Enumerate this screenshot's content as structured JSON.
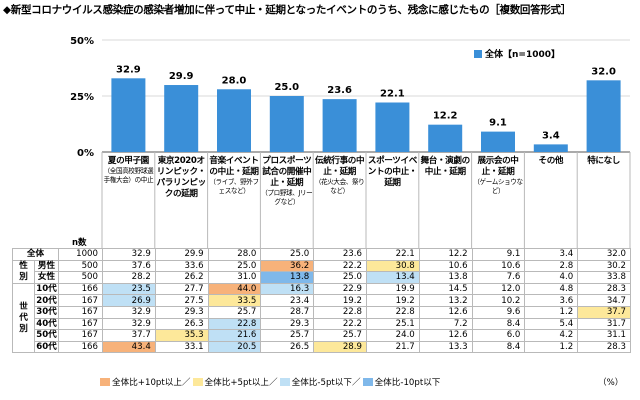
{
  "title": "◆新型コロナウイルス感染症の感染者増加に伴って中止・延期となったイベントのうち、残念に感じたもの［複数回答形式］",
  "legend_label": "全体【n=1000】",
  "n_header": "n数",
  "percent_note": "（%）",
  "colors": {
    "bar": "#3a8fd8",
    "plus10": "#f7b27a",
    "plus5": "#fde89a",
    "minus5": "#bfe0f5",
    "minus10": "#7fb8ea"
  },
  "threshold_legend": [
    {
      "key": "plus10",
      "label": "全体比+10pt以上"
    },
    {
      "key": "plus5",
      "label": "全体比+5pt以上"
    },
    {
      "key": "minus5",
      "label": "全体比-5pt以下"
    },
    {
      "key": "minus10",
      "label": "全体比-10pt以下"
    }
  ],
  "categories": [
    {
      "label": "夏の甲子園",
      "sub": "（全国高校野球選手権大会）の中止"
    },
    {
      "label": "東京2020オリンピック・パラリンピックの延期",
      "sub": ""
    },
    {
      "label": "音楽イベントの中止・延期",
      "sub": "（ライブ、野外フェスなど）"
    },
    {
      "label": "プロスポーツ試合の開催中止・延期",
      "sub": "（プロ野球、Jリーグなど）"
    },
    {
      "label": "伝統行事の中止・延期",
      "sub": "（花火大会、祭りなど）"
    },
    {
      "label": "スポーツイベントの中止・延期",
      "sub": ""
    },
    {
      "label": "舞台・演劇の中止・延期",
      "sub": ""
    },
    {
      "label": "展示会の中止・延期",
      "sub": "（ゲームショウなど）"
    },
    {
      "label": "その他",
      "sub": ""
    },
    {
      "label": "特になし",
      "sub": ""
    }
  ],
  "chart_data": {
    "type": "bar",
    "categories": [
      "夏の甲子園（全国高校野球選手権大会）の中止",
      "東京2020オリンピック・パラリンピックの延期",
      "音楽イベントの中止・延期（ライブ、野外フェスなど）",
      "プロスポーツ試合の開催中止・延期（プロ野球、Jリーグなど）",
      "伝統行事の中止・延期（花火大会、祭りなど）",
      "スポーツイベントの中止・延期",
      "舞台・演劇の中止・延期",
      "展示会の中止・延期（ゲームショウなど）",
      "その他",
      "特になし"
    ],
    "series": [
      {
        "name": "全体【n=1000】",
        "values": [
          32.9,
          29.9,
          28.0,
          25.0,
          23.6,
          22.1,
          12.2,
          9.1,
          3.4,
          32.0
        ]
      }
    ],
    "yticks": [
      "0%",
      "25%",
      "50%"
    ],
    "ylim": [
      0,
      50
    ]
  },
  "table": {
    "groups": [
      {
        "label": "",
        "rows": [
          0
        ]
      },
      {
        "label": "性別",
        "rows": [
          1,
          2
        ]
      },
      {
        "label": "世代別",
        "rows": [
          3,
          4,
          5,
          6,
          7,
          8
        ]
      }
    ],
    "rows": [
      {
        "label": "全体",
        "n": "1000",
        "values": [
          "32.9",
          "29.9",
          "28.0",
          "25.0",
          "23.6",
          "22.1",
          "12.2",
          "9.1",
          "3.4",
          "32.0"
        ],
        "hl": [
          "",
          "",
          "",
          "",
          "",
          "",
          "",
          "",
          "",
          ""
        ]
      },
      {
        "label": "男性",
        "n": "500",
        "values": [
          "37.6",
          "33.6",
          "25.0",
          "36.2",
          "22.2",
          "30.8",
          "10.6",
          "10.6",
          "2.8",
          "30.2"
        ],
        "hl": [
          "",
          "",
          "",
          "plus10",
          "",
          "plus5",
          "",
          "",
          "",
          ""
        ]
      },
      {
        "label": "女性",
        "n": "500",
        "values": [
          "28.2",
          "26.2",
          "31.0",
          "13.8",
          "25.0",
          "13.4",
          "13.8",
          "7.6",
          "4.0",
          "33.8"
        ],
        "hl": [
          "",
          "",
          "",
          "minus10",
          "",
          "minus5",
          "",
          "",
          "",
          ""
        ]
      },
      {
        "label": "10代",
        "n": "166",
        "values": [
          "23.5",
          "27.7",
          "44.0",
          "16.3",
          "22.9",
          "19.9",
          "14.5",
          "12.0",
          "4.8",
          "28.3"
        ],
        "hl": [
          "minus5",
          "",
          "plus10",
          "minus5",
          "",
          "",
          "",
          "",
          "",
          ""
        ]
      },
      {
        "label": "20代",
        "n": "167",
        "values": [
          "26.9",
          "27.5",
          "33.5",
          "23.4",
          "19.2",
          "19.2",
          "13.2",
          "10.2",
          "3.6",
          "34.7"
        ],
        "hl": [
          "minus5",
          "",
          "plus5",
          "",
          "",
          "",
          "",
          "",
          "",
          ""
        ]
      },
      {
        "label": "30代",
        "n": "167",
        "values": [
          "32.9",
          "29.3",
          "25.7",
          "28.7",
          "22.8",
          "22.8",
          "12.6",
          "9.6",
          "1.2",
          "37.7"
        ],
        "hl": [
          "",
          "",
          "",
          "",
          "",
          "",
          "",
          "",
          "",
          "plus5"
        ]
      },
      {
        "label": "40代",
        "n": "167",
        "values": [
          "32.9",
          "26.3",
          "22.8",
          "29.3",
          "22.2",
          "25.1",
          "7.2",
          "8.4",
          "5.4",
          "31.7"
        ],
        "hl": [
          "",
          "",
          "minus5",
          "",
          "",
          "",
          "",
          "",
          "",
          ""
        ]
      },
      {
        "label": "50代",
        "n": "167",
        "values": [
          "37.7",
          "35.3",
          "21.6",
          "25.7",
          "25.7",
          "24.0",
          "12.6",
          "6.0",
          "4.2",
          "31.1"
        ],
        "hl": [
          "",
          "plus5",
          "minus5",
          "",
          "",
          "",
          "",
          "",
          "",
          ""
        ]
      },
      {
        "label": "60代",
        "n": "166",
        "values": [
          "43.4",
          "33.1",
          "20.5",
          "26.5",
          "28.9",
          "21.7",
          "13.3",
          "8.4",
          "1.2",
          "28.3"
        ],
        "hl": [
          "plus10",
          "",
          "minus5",
          "",
          "plus5",
          "",
          "",
          "",
          "",
          ""
        ]
      }
    ]
  }
}
